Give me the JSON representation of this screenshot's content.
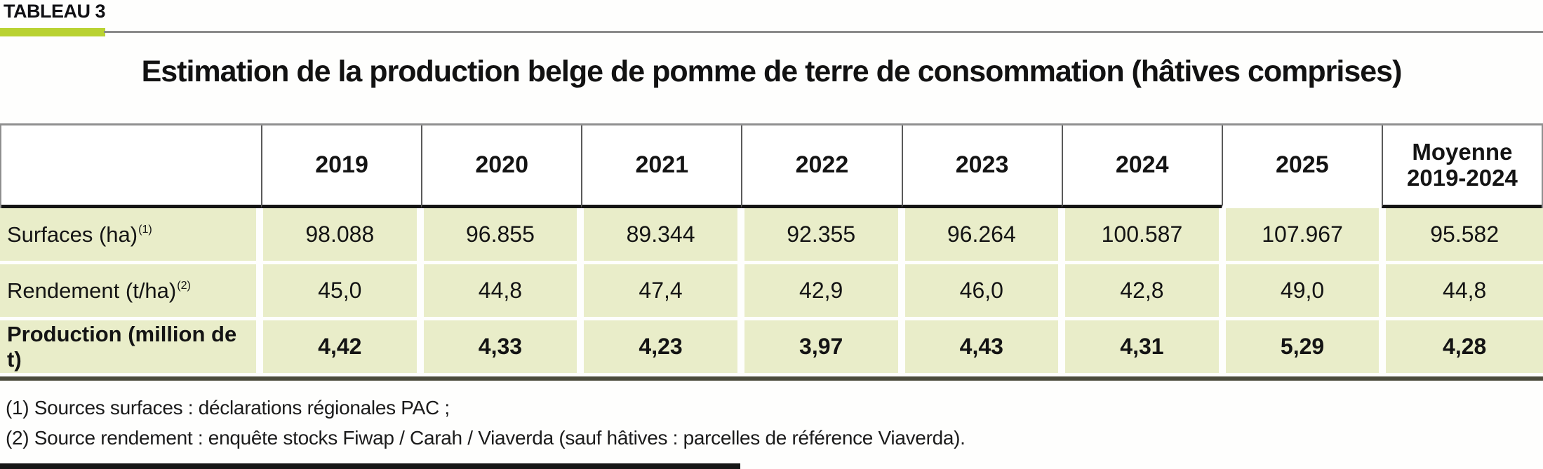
{
  "tag": "TABLEAU 3",
  "title": "Estimation de la production belge de pomme de terre de consommation (hâtives comprises)",
  "table": {
    "year_headers": [
      "2019",
      "2020",
      "2021",
      "2022",
      "2023",
      "2024",
      "2025"
    ],
    "avg_header": "Moyenne\n2019-2024",
    "rows": [
      {
        "label": "Surfaces (ha)",
        "sup": "(1)",
        "values": [
          "98.088",
          "96.855",
          "89.344",
          "92.355",
          "96.264",
          "100.587",
          "107.967",
          "95.582"
        ]
      },
      {
        "label": "Rendement (t/ha)",
        "sup": "(2)",
        "values": [
          "45,0",
          "44,8",
          "47,4",
          "42,9",
          "46,0",
          "42,8",
          "49,0",
          "44,8"
        ]
      },
      {
        "label": "Production (million de t)",
        "sup": "",
        "values": [
          "4,42",
          "4,33",
          "4,23",
          "3,97",
          "4,43",
          "4,31",
          "5,29",
          "4,28"
        ]
      }
    ]
  },
  "footnotes": [
    "(1) Sources surfaces : déclarations régionales PAC ;",
    "(2) Source rendement : enquête stocks Fiwap / Carah / Viaverda (sauf hâtives : parcelles de référence Viaverda)."
  ],
  "colors": {
    "accent_green": "#b9d232",
    "row_green": "#e9edc9",
    "table_bottom_bar": "#4b4b3c"
  }
}
